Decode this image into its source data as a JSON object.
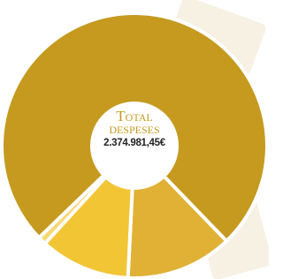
{
  "chart_data": {
    "type": "donut",
    "title": "Total despeses",
    "total_label": "2.374.981,45€",
    "values": [
      13,
      11,
      1,
      75
    ],
    "colors": [
      "#e0b134",
      "#f2c535",
      "#f6d873",
      "#c59a1f"
    ]
  }
}
